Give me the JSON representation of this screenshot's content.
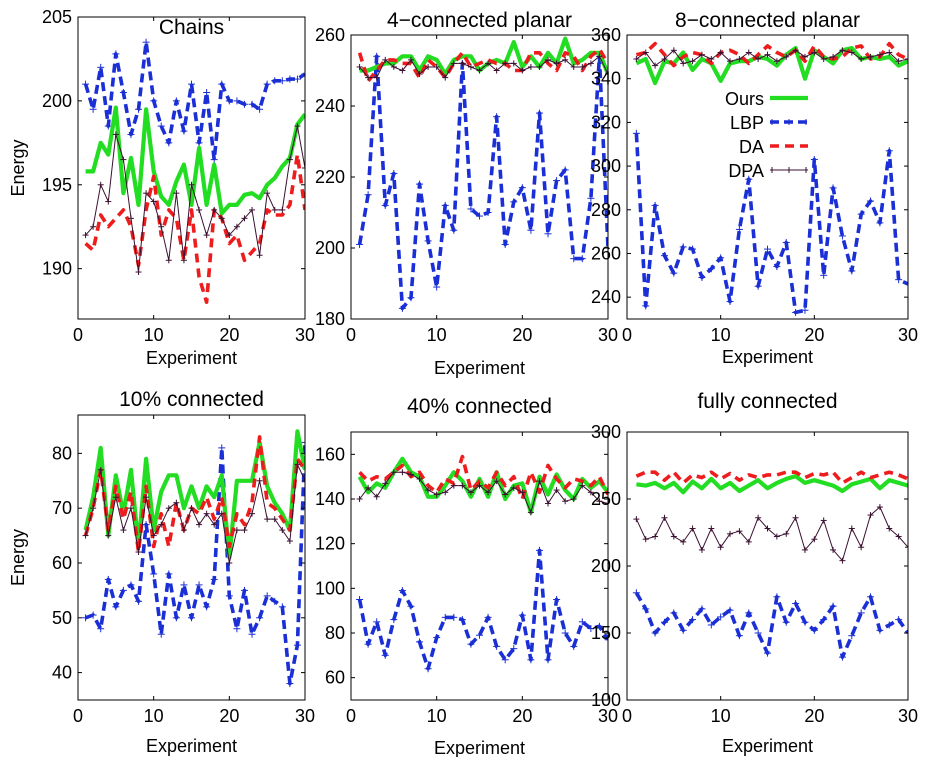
{
  "figure": {
    "xlabel_common": "Experiment",
    "ylabel_common": "Energy"
  },
  "colors": {
    "Ours": "#22dd22",
    "LBP": "#1a2fd6",
    "DA": "#ee1c1c",
    "DPA": "#3a1030"
  },
  "chart_data": [
    {
      "type": "line",
      "title": "Chains",
      "xlabel": "Experiment",
      "ylabel": "Energy",
      "xlim": [
        0,
        30
      ],
      "ylim": [
        187,
        205
      ],
      "xticks": [
        0,
        10,
        20,
        30
      ],
      "yticks": [
        190,
        195,
        200,
        205
      ],
      "x": [
        1,
        2,
        3,
        4,
        5,
        6,
        7,
        8,
        9,
        10,
        11,
        12,
        13,
        14,
        15,
        16,
        17,
        18,
        19,
        20,
        21,
        22,
        23,
        24,
        25,
        26,
        27,
        28,
        29,
        30
      ],
      "series": [
        {
          "name": "LBP",
          "values": [
            201,
            199.5,
            202,
            198.5,
            202.8,
            200.5,
            198,
            199.5,
            203.5,
            200,
            198.5,
            197.5,
            200,
            198.2,
            201,
            197.5,
            200.5,
            196.5,
            201,
            200,
            200,
            199.8,
            199.8,
            199.5,
            201,
            201.2,
            201.2,
            201.3,
            201.3,
            201.6
          ]
        },
        {
          "name": "Ours",
          "values": [
            195.8,
            195.8,
            197.5,
            196.8,
            199.6,
            194.5,
            196.6,
            193.8,
            199.5,
            195.8,
            194.3,
            193.8,
            195.2,
            196.2,
            193.8,
            197.2,
            193.8,
            196.2,
            193.3,
            193.8,
            193.8,
            194.4,
            194.5,
            194.2,
            195,
            195.4,
            196.1,
            196.6,
            198.6,
            199.2
          ]
        },
        {
          "name": "DA",
          "values": [
            191.5,
            191.1,
            193.2,
            192.5,
            193,
            193.5,
            192.5,
            190.2,
            193.5,
            195.5,
            192,
            193.5,
            193,
            190.5,
            193.5,
            189.5,
            188,
            193.5,
            193,
            191.5,
            192,
            190.5,
            191,
            191.5,
            193.5,
            193.2,
            193.2,
            193.8,
            196.8,
            193.5
          ]
        },
        {
          "name": "DPA",
          "values": [
            192,
            192.5,
            195,
            194,
            198,
            196.5,
            193,
            189.8,
            194.5,
            194,
            192.5,
            190.5,
            194.5,
            190.5,
            195,
            193.5,
            192,
            193.5,
            193,
            192,
            192.5,
            193,
            193.5,
            190.8,
            194.5,
            193.5,
            193.5,
            196.5,
            198.5,
            196
          ]
        }
      ]
    },
    {
      "type": "line",
      "title": "4−connected planar",
      "xlabel": "Experiment",
      "ylabel": "",
      "xlim": [
        0,
        30
      ],
      "ylim": [
        180,
        260
      ],
      "xticks": [
        0,
        10,
        20,
        30
      ],
      "yticks": [
        180,
        200,
        220,
        240,
        260
      ],
      "x": [
        1,
        2,
        3,
        4,
        5,
        6,
        7,
        8,
        9,
        10,
        11,
        12,
        13,
        14,
        15,
        16,
        17,
        18,
        19,
        20,
        21,
        22,
        23,
        24,
        25,
        26,
        27,
        28,
        29,
        30
      ],
      "series": [
        {
          "name": "LBP",
          "values": [
            201,
            215,
            254,
            212,
            221,
            183,
            186,
            218,
            202,
            189,
            212,
            205,
            252,
            211,
            209,
            210,
            237,
            201,
            213,
            217,
            205,
            238,
            204,
            219,
            222,
            197,
            197,
            214,
            254,
            200
          ]
        },
        {
          "name": "Ours",
          "values": [
            250,
            250,
            251,
            252,
            252,
            254,
            254,
            250,
            254,
            253,
            249,
            253,
            254,
            254,
            250,
            252,
            253,
            252,
            258,
            251,
            254,
            251,
            255,
            252,
            259,
            252,
            253,
            255,
            255,
            249
          ]
        },
        {
          "name": "DA",
          "values": [
            255,
            247,
            250,
            253,
            253,
            252,
            252,
            248,
            253,
            251,
            248,
            252,
            255,
            251,
            252,
            253,
            252,
            252,
            250,
            250,
            255,
            255,
            252,
            250,
            255,
            254,
            250,
            254,
            256,
            252
          ]
        },
        {
          "name": "DPA",
          "values": [
            251,
            248,
            248,
            253,
            251,
            250,
            253,
            249,
            251,
            251,
            248,
            252,
            252,
            251,
            250,
            252,
            250,
            252,
            252,
            250,
            251,
            251,
            253,
            252,
            253,
            251,
            251,
            252,
            254,
            249
          ]
        }
      ]
    },
    {
      "type": "line",
      "title": "8−connected planar",
      "xlabel": "Experiment",
      "ylabel": "",
      "xlim": [
        0,
        30
      ],
      "ylim": [
        230,
        360
      ],
      "xticks": [
        0,
        10,
        20,
        30
      ],
      "yticks": [
        240,
        260,
        280,
        300,
        320,
        340,
        360
      ],
      "x": [
        1,
        2,
        3,
        4,
        5,
        6,
        7,
        8,
        9,
        10,
        11,
        12,
        13,
        14,
        15,
        16,
        17,
        18,
        19,
        20,
        21,
        22,
        23,
        24,
        25,
        26,
        27,
        28,
        29,
        30
      ],
      "series": [
        {
          "name": "LBP",
          "values": [
            315,
            236,
            282,
            259,
            251,
            263,
            262,
            249,
            253,
            258,
            238,
            271,
            294,
            245,
            262,
            254,
            265,
            233,
            234,
            303,
            250,
            290,
            268,
            252,
            278,
            284,
            274,
            307,
            248,
            246
          ]
        },
        {
          "name": "Ours",
          "values": [
            347,
            349,
            338,
            348,
            347,
            352,
            344,
            349,
            347,
            339,
            347,
            348,
            348,
            350,
            349,
            346,
            351,
            354,
            340,
            353,
            350,
            347,
            353,
            354,
            349,
            350,
            349,
            350,
            346,
            348
          ]
        },
        {
          "name": "DA",
          "values": [
            351,
            352,
            356,
            351,
            346,
            350,
            352,
            351,
            347,
            352,
            353,
            351,
            347,
            351,
            355,
            352,
            350,
            353,
            348,
            355,
            350,
            349,
            350,
            354,
            355,
            349,
            350,
            356,
            351,
            349
          ]
        },
        {
          "name": "DPA",
          "values": [
            349,
            352,
            346,
            349,
            353,
            347,
            348,
            351,
            349,
            352,
            348,
            349,
            352,
            349,
            351,
            348,
            350,
            353,
            350,
            352,
            349,
            350,
            353,
            352,
            349,
            350,
            351,
            352,
            348,
            349
          ]
        }
      ]
    },
    {
      "type": "line",
      "title": "10% connected",
      "xlabel": "Experiment",
      "ylabel": "Energy",
      "xlim": [
        0,
        30
      ],
      "ylim": [
        35,
        87
      ],
      "xticks": [
        0,
        10,
        20,
        30
      ],
      "yticks": [
        40,
        50,
        60,
        70,
        80
      ],
      "x": [
        1,
        2,
        3,
        4,
        5,
        6,
        7,
        8,
        9,
        10,
        11,
        12,
        13,
        14,
        15,
        16,
        17,
        18,
        19,
        20,
        21,
        22,
        23,
        24,
        25,
        26,
        27,
        28,
        29,
        30
      ],
      "series": [
        {
          "name": "LBP",
          "values": [
            50,
            50.5,
            48,
            57,
            52,
            55,
            56,
            53,
            67,
            58,
            47,
            58,
            50,
            56,
            50,
            56,
            52,
            57,
            81,
            54,
            48,
            55,
            47,
            50,
            54,
            53,
            52,
            38,
            45,
            82
          ]
        },
        {
          "name": "Ours",
          "values": [
            66,
            72,
            81,
            65,
            76,
            69,
            77,
            63,
            79,
            66,
            73,
            76,
            76,
            70,
            74,
            70,
            74,
            72,
            76,
            61,
            75,
            75,
            75,
            82,
            74,
            71,
            69,
            66,
            84,
            77
          ]
        },
        {
          "name": "DA",
          "values": [
            65,
            70,
            77,
            66,
            74,
            68,
            73,
            62,
            74,
            63,
            69,
            63,
            71,
            66,
            70,
            69,
            72,
            68,
            72,
            63,
            69,
            67,
            71,
            83,
            71,
            70,
            68,
            66,
            79,
            77
          ]
        },
        {
          "name": "DPA",
          "values": [
            65,
            70,
            77,
            65,
            72,
            66,
            70,
            62,
            72,
            65,
            67,
            70,
            71,
            66,
            70,
            67,
            69,
            67,
            69,
            60,
            66,
            66,
            69,
            75,
            68,
            68,
            66,
            64,
            78,
            75
          ]
        }
      ]
    },
    {
      "type": "line",
      "title": "40% connected",
      "xlabel": "Experiment",
      "ylabel": "",
      "xlim": [
        0,
        30
      ],
      "ylim": [
        50,
        170
      ],
      "xticks": [
        0,
        10,
        20,
        30
      ],
      "yticks": [
        60,
        80,
        100,
        120,
        140,
        160
      ],
      "x": [
        1,
        2,
        3,
        4,
        5,
        6,
        7,
        8,
        9,
        10,
        11,
        12,
        13,
        14,
        15,
        16,
        17,
        18,
        19,
        20,
        21,
        22,
        23,
        24,
        25,
        26,
        27,
        28,
        29,
        30
      ],
      "series": [
        {
          "name": "LBP",
          "values": [
            95,
            75,
            85,
            70,
            86,
            99,
            92,
            76,
            64,
            78,
            87,
            87,
            86,
            75,
            79,
            87,
            74,
            68,
            73,
            88,
            68,
            117,
            68,
            95,
            80,
            74,
            85,
            82,
            83,
            77
          ]
        },
        {
          "name": "Ours",
          "values": [
            150,
            143,
            147,
            145,
            152,
            158,
            152,
            150,
            141,
            141,
            146,
            152,
            148,
            141,
            149,
            141,
            152,
            140,
            146,
            147,
            134,
            150,
            142,
            151,
            144,
            140,
            149,
            145,
            148,
            143
          ]
        },
        {
          "name": "DA",
          "values": [
            152,
            148,
            150,
            149,
            152,
            155,
            150,
            152,
            146,
            143,
            149,
            147,
            159,
            144,
            148,
            145,
            152,
            146,
            150,
            140,
            152,
            143,
            155,
            149,
            145,
            149,
            148,
            146,
            150,
            142
          ]
        },
        {
          "name": "DPA",
          "values": [
            140,
            145,
            141,
            147,
            152,
            152,
            151,
            149,
            144,
            142,
            143,
            146,
            146,
            143,
            146,
            143,
            148,
            142,
            145,
            143,
            134,
            148,
            138,
            144,
            139,
            140,
            146,
            143,
            139,
            138
          ]
        }
      ]
    },
    {
      "type": "line",
      "title": "fully connected",
      "xlabel": "Experiment",
      "ylabel": "",
      "xlim": [
        0,
        30
      ],
      "ylim": [
        100,
        300
      ],
      "xticks": [
        0,
        10,
        20,
        30
      ],
      "yticks": [
        100,
        150,
        200,
        250,
        300
      ],
      "x": [
        1,
        2,
        3,
        4,
        5,
        6,
        7,
        8,
        9,
        10,
        11,
        12,
        13,
        14,
        15,
        16,
        17,
        18,
        19,
        20,
        21,
        22,
        23,
        24,
        25,
        26,
        27,
        28,
        29,
        30
      ],
      "series": [
        {
          "name": "LBP",
          "values": [
            180,
            168,
            150,
            158,
            165,
            152,
            160,
            168,
            156,
            162,
            167,
            148,
            165,
            150,
            135,
            177,
            158,
            172,
            158,
            152,
            160,
            170,
            132,
            148,
            165,
            177,
            152,
            156,
            160,
            150
          ]
        },
        {
          "name": "Ours",
          "values": [
            261,
            260,
            262,
            258,
            262,
            255,
            263,
            258,
            265,
            258,
            262,
            256,
            260,
            264,
            258,
            262,
            265,
            267,
            262,
            264,
            262,
            260,
            256,
            261,
            263,
            265,
            258,
            264,
            262,
            260
          ]
        },
        {
          "name": "DA",
          "values": [
            267,
            270,
            270,
            264,
            270,
            262,
            268,
            266,
            270,
            265,
            269,
            264,
            268,
            266,
            268,
            268,
            270,
            270,
            266,
            269,
            268,
            270,
            262,
            266,
            270,
            266,
            268,
            270,
            268,
            265
          ]
        },
        {
          "name": "DPA",
          "values": [
            235,
            220,
            222,
            236,
            222,
            218,
            228,
            212,
            228,
            214,
            224,
            226,
            218,
            236,
            228,
            222,
            224,
            236,
            212,
            220,
            234,
            212,
            204,
            228,
            214,
            238,
            244,
            228,
            222,
            214
          ]
        }
      ]
    }
  ],
  "legend": {
    "entries": [
      "Ours",
      "LBP",
      "DA",
      "DPA"
    ]
  }
}
